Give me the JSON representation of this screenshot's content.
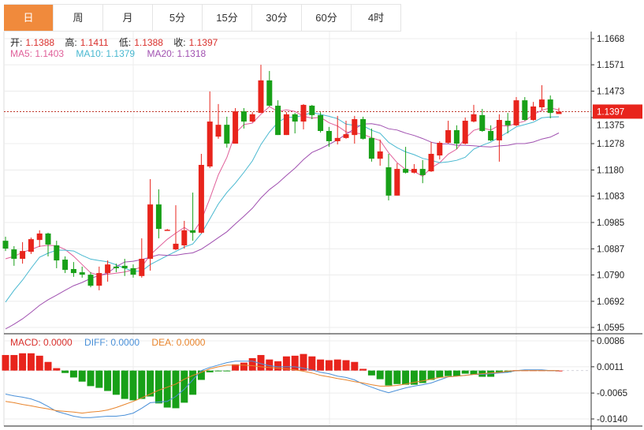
{
  "tabs": [
    {
      "label": "日",
      "active": true
    },
    {
      "label": "周"
    },
    {
      "label": "月"
    },
    {
      "label": "5分"
    },
    {
      "label": "15分"
    },
    {
      "label": "30分"
    },
    {
      "label": "60分"
    },
    {
      "label": "4时"
    }
  ],
  "ohlc_legend": {
    "open_label": "开:",
    "open": "1.1388",
    "high_label": "高:",
    "high": "1.1411",
    "low_label": "低:",
    "low": "1.1388",
    "close_label": "收:",
    "close": "1.1397"
  },
  "ma_legend": {
    "ma5": "MA5: 1.1403",
    "ma10": "MA10: 1.1379",
    "ma20": "MA20: 1.1318"
  },
  "macd_legend": {
    "macd": "MACD: 0.0000",
    "diff": "DIFF: 0.0000",
    "dea": "DEA: 0.0000"
  },
  "colors": {
    "up": "#e8241c",
    "down": "#18a018",
    "ma5": "#e0609a",
    "ma10": "#48b8d0",
    "ma20": "#a050b0",
    "diff": "#4a90d8",
    "dea": "#e8842c",
    "accent_tab": "#f08a3c"
  },
  "chart_data": [
    {
      "type": "candlestick",
      "up_color_meaning": "red = close above open",
      "ylim": [
        1.0595,
        1.1668
      ],
      "y_ticks": [
        "1.1668",
        "1.1571",
        "1.1473",
        "1.1375",
        "1.1278",
        "1.1180",
        "1.1083",
        "1.0985",
        "1.0887",
        "1.0790",
        "1.0692",
        "1.0595"
      ],
      "current_price": "1.1397",
      "grid": true,
      "ohlc": [
        [
          1.0917,
          1.0932,
          1.0879,
          1.0888
        ],
        [
          1.0885,
          1.0897,
          1.0824,
          1.085
        ],
        [
          1.085,
          1.0912,
          1.0832,
          1.0879
        ],
        [
          1.0876,
          1.0929,
          1.0868,
          1.0923
        ],
        [
          1.092,
          1.0956,
          1.0894,
          1.0944
        ],
        [
          1.0944,
          1.0947,
          1.0859,
          1.0903
        ],
        [
          1.09,
          1.0917,
          1.0815,
          1.0844
        ],
        [
          1.0847,
          1.0859,
          1.0797,
          1.0809
        ],
        [
          1.0812,
          1.0838,
          1.0783,
          1.0797
        ],
        [
          1.08,
          1.0821,
          1.078,
          1.0791
        ],
        [
          1.0791,
          1.08,
          1.0744,
          1.075
        ],
        [
          1.075,
          1.0821,
          1.0733,
          1.0797
        ],
        [
          1.0797,
          1.0844,
          1.0765,
          1.0829
        ],
        [
          1.0821,
          1.0832,
          1.08,
          1.0815
        ],
        [
          1.0824,
          1.085,
          1.0786,
          1.0815
        ],
        [
          1.0815,
          1.0829,
          1.078,
          1.0791
        ],
        [
          1.0786,
          1.0926,
          1.078,
          1.085
        ],
        [
          1.085,
          1.1146,
          1.0806,
          1.1052
        ],
        [
          1.1052,
          1.1108,
          1.0926,
          1.0961
        ],
        [
          1.0958,
          1.0961,
          1.0955,
          1.0958
        ],
        [
          1.0885,
          1.1049,
          1.0882,
          1.0906
        ],
        [
          1.09,
          1.0991,
          1.0888,
          1.0956
        ],
        [
          1.0956,
          1.1096,
          1.0917,
          1.0947
        ],
        [
          1.0947,
          1.124,
          1.0944,
          1.1199
        ],
        [
          1.1193,
          1.1472,
          1.1187,
          1.136
        ],
        [
          1.1304,
          1.1425,
          1.1296,
          1.1348
        ],
        [
          1.1348,
          1.1378,
          1.1263,
          1.1278
        ],
        [
          1.1278,
          1.141,
          1.1278,
          1.1398
        ],
        [
          1.1398,
          1.141,
          1.1334,
          1.136
        ],
        [
          1.136,
          1.1395,
          1.1357,
          1.1387
        ],
        [
          1.1392,
          1.1571,
          1.1392,
          1.1513
        ],
        [
          1.1513,
          1.1548,
          1.1416,
          1.1419
        ],
        [
          1.1419,
          1.1439,
          1.131,
          1.131
        ],
        [
          1.131,
          1.1395,
          1.131,
          1.1387
        ],
        [
          1.1387,
          1.1392,
          1.1316,
          1.136
        ],
        [
          1.136,
          1.1425,
          1.1331,
          1.1422
        ],
        [
          1.1419,
          1.1422,
          1.1369,
          1.1384
        ],
        [
          1.1384,
          1.1395,
          1.1319,
          1.1325
        ],
        [
          1.1325,
          1.134,
          1.1266,
          1.1287
        ],
        [
          1.1287,
          1.1381,
          1.1275,
          1.1299
        ],
        [
          1.1299,
          1.1363,
          1.1296,
          1.1313
        ],
        [
          1.131,
          1.1381,
          1.1278,
          1.1369
        ],
        [
          1.1369,
          1.1378,
          1.1293,
          1.1296
        ],
        [
          1.1299,
          1.1334,
          1.1211,
          1.1222
        ],
        [
          1.1222,
          1.1293,
          1.1196,
          1.1249
        ],
        [
          1.119,
          1.124,
          1.1067,
          1.1085
        ],
        [
          1.1085,
          1.1205,
          1.1085,
          1.1184
        ],
        [
          1.1184,
          1.1266,
          1.1167,
          1.117
        ],
        [
          1.117,
          1.1202,
          1.1167,
          1.1184
        ],
        [
          1.1184,
          1.1217,
          1.1131,
          1.1161
        ],
        [
          1.1175,
          1.1284,
          1.1173,
          1.124
        ],
        [
          1.1234,
          1.1287,
          1.1219,
          1.1281
        ],
        [
          1.1281,
          1.1363,
          1.1278,
          1.1328
        ],
        [
          1.1328,
          1.1346,
          1.1258,
          1.1278
        ],
        [
          1.1278,
          1.1375,
          1.1275,
          1.1363
        ],
        [
          1.136,
          1.1422,
          1.1357,
          1.1387
        ],
        [
          1.1384,
          1.1407,
          1.1322,
          1.1325
        ],
        [
          1.1325,
          1.1346,
          1.1287,
          1.129
        ],
        [
          1.129,
          1.1387,
          1.1211,
          1.1366
        ],
        [
          1.1363,
          1.1392,
          1.1316,
          1.1346
        ],
        [
          1.1346,
          1.1451,
          1.1343,
          1.1439
        ],
        [
          1.1439,
          1.1451,
          1.1363,
          1.1366
        ],
        [
          1.1366,
          1.1433,
          1.1363,
          1.1416
        ],
        [
          1.1413,
          1.1495,
          1.1401,
          1.1442
        ],
        [
          1.1442,
          1.1457,
          1.1372,
          1.1392
        ],
        [
          1.1388,
          1.1411,
          1.1388,
          1.1397
        ]
      ],
      "moving_averages": [
        {
          "name": "MA5",
          "period": 5,
          "lead_values": [
            1.085,
            1.0859,
            1.0874,
            1.0885
          ]
        },
        {
          "name": "MA10",
          "period": 10,
          "lead_values": [
            1.0689,
            1.0733,
            1.0771,
            1.0815,
            1.0856,
            1.0871,
            1.0882,
            1.0882,
            1.0879
          ]
        },
        {
          "name": "MA20",
          "period": 20,
          "lead_values": [
            1.0589,
            1.0607,
            1.0627,
            1.0651,
            1.0677,
            1.0698,
            1.0715,
            1.0733,
            1.075,
            1.0762,
            1.0777,
            1.0788,
            1.0797,
            1.0821,
            1.0838,
            1.0841,
            1.0847,
            1.0856,
            1.0865
          ]
        }
      ]
    },
    {
      "type": "bar+line",
      "ylim": [
        -0.014,
        0.0086
      ],
      "y_ticks": [
        "0.0086",
        "0.0011",
        "-0.0065",
        "-0.0140"
      ],
      "macd": [
        0.0045,
        0.0045,
        0.005,
        0.005,
        0.0043,
        0.0025,
        0.0007,
        -0.0007,
        -0.002,
        -0.0032,
        -0.0045,
        -0.005,
        -0.0059,
        -0.007,
        -0.0082,
        -0.0086,
        -0.0082,
        -0.0075,
        -0.0095,
        -0.0107,
        -0.0109,
        -0.0093,
        -0.007,
        -0.0027,
        -0.0005,
        -0.0002,
        -0.0001,
        0.0018,
        0.0023,
        0.0036,
        0.0045,
        0.0032,
        0.0027,
        0.0041,
        0.0043,
        0.0048,
        0.0041,
        0.0032,
        0.003,
        0.0032,
        0.003,
        0.0025,
        0.0005,
        -0.0014,
        -0.0025,
        -0.0043,
        -0.0039,
        -0.0041,
        -0.0041,
        -0.0036,
        -0.0027,
        -0.002,
        -0.0016,
        -0.0016,
        -0.0009,
        -0.0011,
        -0.0018,
        -0.0018,
        -0.0007,
        -0.0005,
        0.0001,
        0.0001,
        0.0001,
        0.0001,
        0.0001,
        0.0
      ],
      "diff": [
        -0.0068,
        -0.0073,
        -0.0077,
        -0.0082,
        -0.0091,
        -0.0104,
        -0.0118,
        -0.0125,
        -0.0132,
        -0.0136,
        -0.0136,
        -0.0134,
        -0.0132,
        -0.0132,
        -0.0129,
        -0.0123,
        -0.0109,
        -0.0093,
        -0.0091,
        -0.0089,
        -0.0075,
        -0.0054,
        -0.0027,
        0.0,
        0.0009,
        0.0016,
        0.0023,
        0.0027,
        0.0027,
        0.0027,
        0.002,
        0.0014,
        0.0011,
        0.0011,
        0.0011,
        0.0007,
        0.0002,
        -0.0005,
        -0.0009,
        -0.0016,
        -0.002,
        -0.0027,
        -0.0039,
        -0.0048,
        -0.0057,
        -0.0064,
        -0.0057,
        -0.005,
        -0.0045,
        -0.0041,
        -0.0036,
        -0.0027,
        -0.0018,
        -0.0016,
        -0.0014,
        -0.0011,
        -0.0011,
        -0.0009,
        -0.0007,
        -0.0005,
        0.0,
        0.0002,
        0.0002,
        0.0002,
        0.0,
        0.0
      ],
      "dea": [
        -0.0089,
        -0.0093,
        -0.0098,
        -0.0102,
        -0.0107,
        -0.0111,
        -0.0116,
        -0.0118,
        -0.012,
        -0.0123,
        -0.012,
        -0.0118,
        -0.0114,
        -0.0107,
        -0.0098,
        -0.0089,
        -0.0079,
        -0.0068,
        -0.0057,
        -0.0048,
        -0.0039,
        -0.0025,
        -0.0014,
        -0.0005,
        0.0005,
        0.0011,
        0.0016,
        0.0016,
        0.0016,
        0.0014,
        0.0011,
        0.0009,
        0.0007,
        0.0005,
        0.0002,
        -0.0002,
        -0.0007,
        -0.0014,
        -0.0018,
        -0.0023,
        -0.0027,
        -0.0032,
        -0.0036,
        -0.0041,
        -0.0045,
        -0.0045,
        -0.0043,
        -0.0039,
        -0.0034,
        -0.003,
        -0.0025,
        -0.002,
        -0.0018,
        -0.0016,
        -0.0014,
        -0.0011,
        -0.0009,
        -0.0007,
        -0.0005,
        -0.0002,
        0.0,
        0.0,
        0.0,
        0.0,
        0.0,
        0.0
      ]
    }
  ]
}
